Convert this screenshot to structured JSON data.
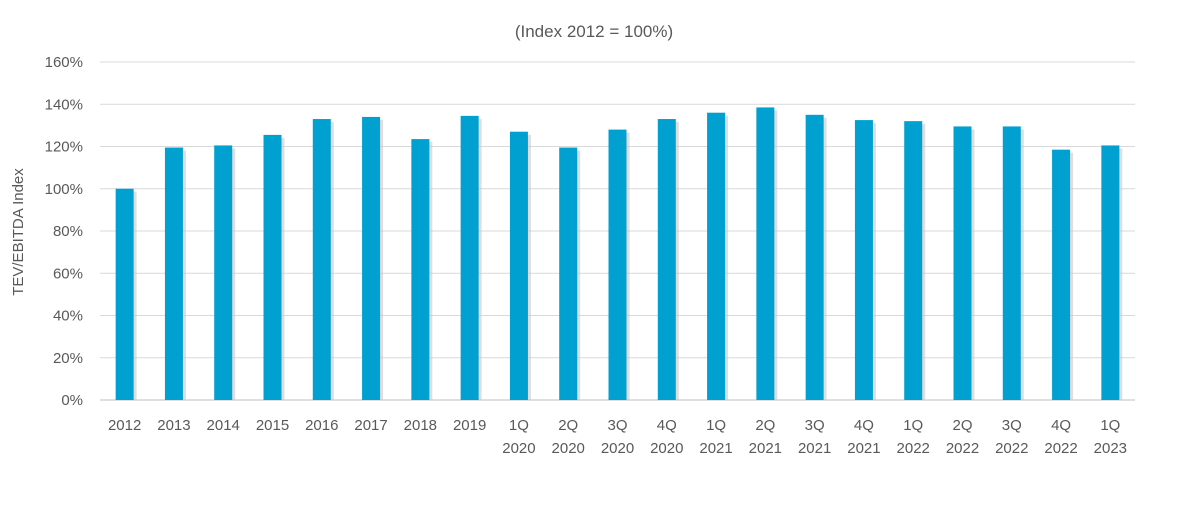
{
  "chart_data": {
    "type": "bar",
    "title": "(Index 2012 = 100%)",
    "ylabel": "TEV/EBITDA Index",
    "xlabel": "",
    "ylim": [
      0,
      160
    ],
    "y_ticks": [
      "0%",
      "20%",
      "40%",
      "60%",
      "80%",
      "100%",
      "120%",
      "140%",
      "160%"
    ],
    "y_tick_values": [
      0,
      20,
      40,
      60,
      80,
      100,
      120,
      140,
      160
    ],
    "grid": true,
    "legend": "none",
    "categories": [
      "2012",
      "2013",
      "2014",
      "2015",
      "2016",
      "2017",
      "2018",
      "2019",
      "1Q 2020",
      "2Q 2020",
      "3Q 2020",
      "4Q 2020",
      "1Q 2021",
      "2Q 2021",
      "3Q 2021",
      "4Q 2021",
      "1Q 2022",
      "2Q 2022",
      "3Q 2022",
      "4Q 2022",
      "1Q 2023"
    ],
    "category_lines": [
      [
        "2012"
      ],
      [
        "2013"
      ],
      [
        "2014"
      ],
      [
        "2015"
      ],
      [
        "2016"
      ],
      [
        "2017"
      ],
      [
        "2018"
      ],
      [
        "2019"
      ],
      [
        "1Q",
        "2020"
      ],
      [
        "2Q",
        "2020"
      ],
      [
        "3Q",
        "2020"
      ],
      [
        "4Q",
        "2020"
      ],
      [
        "1Q",
        "2021"
      ],
      [
        "2Q",
        "2021"
      ],
      [
        "3Q",
        "2021"
      ],
      [
        "4Q",
        "2021"
      ],
      [
        "1Q",
        "2022"
      ],
      [
        "2Q",
        "2022"
      ],
      [
        "3Q",
        "2022"
      ],
      [
        "4Q",
        "2022"
      ],
      [
        "1Q",
        "2023"
      ]
    ],
    "values": [
      100,
      119.5,
      120.5,
      125.5,
      133,
      134,
      123.5,
      134.5,
      127,
      119.5,
      128,
      133,
      136,
      138.5,
      135,
      132.5,
      132,
      129.5,
      129.5,
      118.5,
      120.5
    ],
    "colors": {
      "bar": "#00a0d0",
      "bar_shadow": "#c8c8c8",
      "grid": "#d9d9d9",
      "axis": "#bfbfbf",
      "text": "#595959"
    }
  }
}
